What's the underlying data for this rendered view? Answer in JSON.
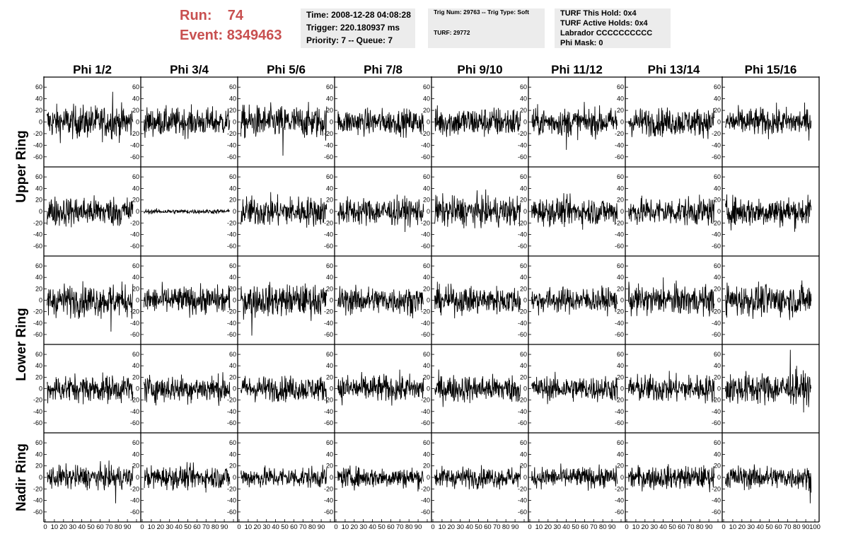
{
  "header": {
    "run_label": "Run:",
    "run_value": "74",
    "event_label": "Event:",
    "event_value": "8349463"
  },
  "info": {
    "time": "Time: 2008-12-28 04:08:28",
    "trigger": "Trigger: 220.180937 ms",
    "priority": "Priority: 7 -- Queue: 7",
    "trig_num": "Trig Num: 29763 -- Trig Type: Soft",
    "turf": "TURF: 29772",
    "turf_this_hold": "TURF This Hold: 0x4",
    "turf_active_holds": "TURF Active Holds: 0x4",
    "labrador": "Labrador CCCCCCCCCC",
    "phi_mask": "Phi Mask: 0"
  },
  "chart_data": {
    "type": "line",
    "columns": [
      "Phi 1/2",
      "Phi 3/4",
      "Phi 5/6",
      "Phi 7/8",
      "Phi 9/10",
      "Phi 11/12",
      "Phi 13/14",
      "Phi 15/16"
    ],
    "rows": [
      "Upper Ring",
      "Upper Ring",
      "Lower Ring",
      "Lower Ring",
      "Nadir Ring"
    ],
    "row_labels": [
      {
        "text": "Upper Ring",
        "spans_rows": [
          0,
          1
        ]
      },
      {
        "text": "Lower Ring",
        "spans_rows": [
          2,
          3
        ]
      },
      {
        "text": "Nadir Ring",
        "spans_rows": [
          4,
          4
        ]
      }
    ],
    "xlim": [
      0,
      100
    ],
    "ylim": [
      -70,
      70
    ],
    "yticks": [
      -60,
      -40,
      -20,
      0,
      20,
      40,
      60
    ],
    "xticks": [
      0,
      10,
      20,
      30,
      40,
      50,
      60,
      70,
      80,
      90,
      100
    ],
    "samples_per_trace": 260,
    "trace_rms_mV": [
      [
        14,
        12,
        14,
        11,
        13,
        12,
        12,
        12
      ],
      [
        13,
        2,
        13,
        12,
        13,
        12,
        12,
        13
      ],
      [
        14,
        12,
        14,
        12,
        12,
        11,
        13,
        14
      ],
      [
        12,
        12,
        11,
        12,
        12,
        11,
        12,
        14
      ],
      [
        10,
        10,
        9,
        9,
        9,
        9,
        10,
        10
      ]
    ],
    "trace_spikes": [
      {
        "row": 0,
        "col": 0,
        "x": 74,
        "y": 52
      },
      {
        "row": 0,
        "col": 2,
        "x": 48,
        "y": -58
      },
      {
        "row": 0,
        "col": 5,
        "x": 40,
        "y": -48
      },
      {
        "row": 2,
        "col": 0,
        "x": 72,
        "y": -55
      },
      {
        "row": 2,
        "col": 2,
        "x": 14,
        "y": -62
      },
      {
        "row": 2,
        "col": 6,
        "x": 40,
        "y": 40
      },
      {
        "row": 3,
        "col": 7,
        "x": 73,
        "y": 68
      },
      {
        "row": 3,
        "col": 7,
        "x": 80,
        "y": 40
      },
      {
        "row": 4,
        "col": 0,
        "x": 77,
        "y": -45
      },
      {
        "row": 4,
        "col": 7,
        "x": 95,
        "y": -45
      }
    ]
  }
}
